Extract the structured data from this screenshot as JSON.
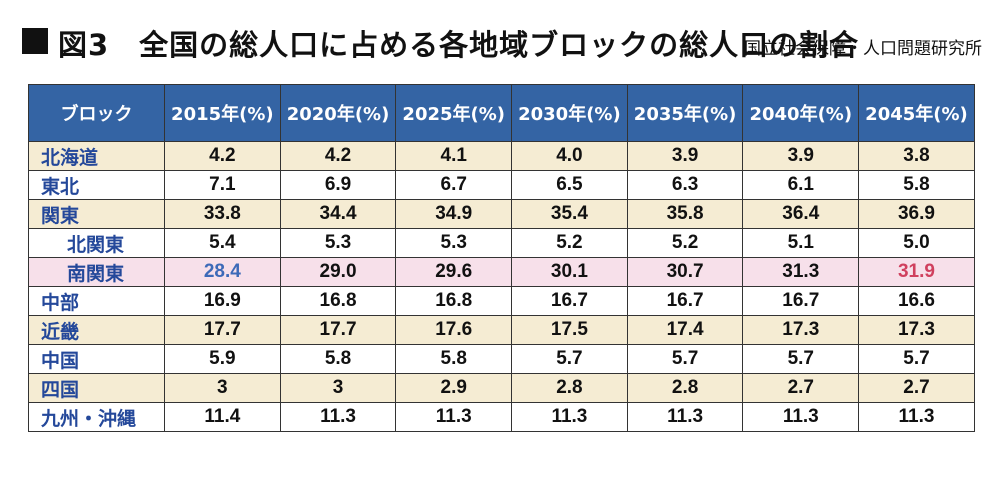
{
  "title": "■図3　全国の総人口に占める各地域ブロックの総人口の割合",
  "title_text": "図3　全国の総人口に占める各地域ブロックの総人口の割合",
  "source": "国立社会保障・人口問題研究所",
  "colors": {
    "header_bg": "#3464a4",
    "row_tan": "#f5ecd3",
    "row_pink": "#f7e0ea",
    "name_text": "#24489a",
    "highlight_blue": "#3d6ab8",
    "highlight_red": "#d0405e"
  },
  "chart_data": {
    "type": "table",
    "title": "図3　全国の総人口に占める各地域ブロックの総人口の割合",
    "columns": [
      "ブロック",
      "2015年(%)",
      "2020年(%)",
      "2025年(%)",
      "2030年(%)",
      "2035年(%)",
      "2040年(%)",
      "2045年(%)"
    ],
    "rows": [
      {
        "name": "北海道",
        "values": [
          "4.2",
          "4.2",
          "4.1",
          "4.0",
          "3.9",
          "3.9",
          "3.8"
        ]
      },
      {
        "name": "東北",
        "values": [
          "7.1",
          "6.9",
          "6.7",
          "6.5",
          "6.3",
          "6.1",
          "5.8"
        ]
      },
      {
        "name": "関東",
        "values": [
          "33.8",
          "34.4",
          "34.9",
          "35.4",
          "35.8",
          "36.4",
          "36.9"
        ]
      },
      {
        "name": "北関東",
        "values": [
          "5.4",
          "5.3",
          "5.3",
          "5.2",
          "5.2",
          "5.1",
          "5.0"
        ]
      },
      {
        "name": "南関東",
        "values": [
          "28.4",
          "29.0",
          "29.6",
          "30.1",
          "30.7",
          "31.3",
          "31.9"
        ]
      },
      {
        "name": "中部",
        "values": [
          "16.9",
          "16.8",
          "16.8",
          "16.7",
          "16.7",
          "16.7",
          "16.6"
        ]
      },
      {
        "name": "近畿",
        "values": [
          "17.7",
          "17.7",
          "17.6",
          "17.5",
          "17.4",
          "17.3",
          "17.3"
        ]
      },
      {
        "name": "中国",
        "values": [
          "5.9",
          "5.8",
          "5.8",
          "5.7",
          "5.7",
          "5.7",
          "5.7"
        ]
      },
      {
        "name": "四国",
        "values": [
          "3",
          "3",
          "2.9",
          "2.8",
          "2.8",
          "2.7",
          "2.7"
        ]
      },
      {
        "name": "九州・沖縄",
        "values": [
          "11.4",
          "11.3",
          "11.3",
          "11.3",
          "11.3",
          "11.3",
          "11.3"
        ]
      }
    ]
  }
}
